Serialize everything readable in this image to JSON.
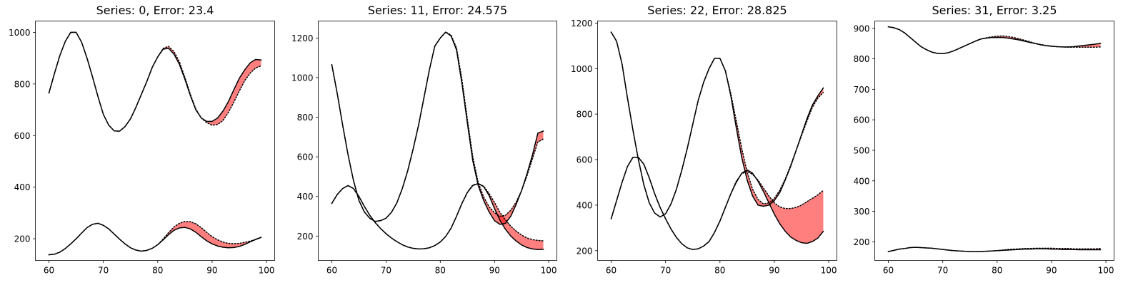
{
  "chart_data": [
    {
      "type": "line",
      "title": "Series: 0, Error: 23.4",
      "xlim": [
        57.5,
        101.5
      ],
      "ylim": [
        116,
        1044
      ],
      "xticks": [
        60,
        70,
        80,
        90,
        100
      ],
      "yticks": [
        200,
        400,
        600,
        800,
        1000
      ],
      "x": [
        60,
        61,
        62,
        63,
        64,
        65,
        66,
        67,
        68,
        69,
        70,
        71,
        72,
        73,
        74,
        75,
        76,
        77,
        78,
        79,
        80,
        81,
        82,
        83,
        84,
        85,
        86,
        87,
        88,
        89,
        90,
        91,
        92,
        93,
        94,
        95,
        96,
        97,
        98,
        99
      ],
      "series": [
        {
          "values": [
            765,
            840,
            910,
            965,
            1000,
            1000,
            962,
            900,
            828,
            752,
            682,
            640,
            618,
            617,
            635,
            665,
            710,
            760,
            810,
            865,
            905,
            935,
            938,
            915,
            875,
            818,
            755,
            700,
            668,
            655,
            655,
            668,
            695,
            732,
            778,
            822,
            855,
            882,
            895,
            893
          ]
        },
        {
          "values": [
            765,
            840,
            910,
            965,
            1000,
            1000,
            962,
            900,
            828,
            752,
            682,
            640,
            618,
            617,
            635,
            665,
            710,
            760,
            810,
            865,
            905,
            938,
            946,
            925,
            885,
            825,
            760,
            703,
            668,
            650,
            640,
            643,
            658,
            690,
            730,
            773,
            813,
            842,
            862,
            870
          ],
          "style": "dotted"
        },
        {
          "values": [
            138,
            140,
            148,
            162,
            180,
            200,
            222,
            243,
            256,
            260,
            252,
            238,
            218,
            198,
            180,
            165,
            156,
            152,
            155,
            163,
            177,
            196,
            216,
            233,
            242,
            244,
            238,
            225,
            208,
            192,
            180,
            172,
            167,
            165,
            166,
            170,
            178,
            188,
            197,
            205
          ]
        },
        {
          "values": [
            138,
            140,
            148,
            162,
            180,
            200,
            222,
            243,
            256,
            260,
            252,
            238,
            218,
            198,
            180,
            165,
            156,
            152,
            155,
            163,
            177,
            199,
            224,
            246,
            260,
            267,
            266,
            258,
            243,
            225,
            208,
            196,
            187,
            182,
            181,
            182,
            186,
            191,
            198,
            206
          ],
          "style": "dotted"
        }
      ]
    },
    {
      "type": "line",
      "title": "Series: 11, Error: 24.575",
      "xlim": [
        57.5,
        101.5
      ],
      "ylim": [
        77,
        1286
      ],
      "xticks": [
        60,
        70,
        80,
        90,
        100
      ],
      "yticks": [
        200,
        400,
        600,
        800,
        1000,
        1200
      ],
      "x": [
        60,
        61,
        62,
        63,
        64,
        65,
        66,
        67,
        68,
        69,
        70,
        71,
        72,
        73,
        74,
        75,
        76,
        77,
        78,
        79,
        80,
        81,
        82,
        83,
        84,
        85,
        86,
        87,
        88,
        89,
        90,
        91,
        92,
        93,
        94,
        95,
        96,
        97,
        98,
        99
      ],
      "series": [
        {
          "values": [
            1065,
            920,
            760,
            610,
            480,
            380,
            322,
            290,
            274,
            278,
            290,
            320,
            368,
            440,
            530,
            640,
            760,
            900,
            1040,
            1160,
            1200,
            1230,
            1210,
            1140,
            970,
            770,
            580,
            455,
            380,
            322,
            278,
            259,
            264,
            300,
            360,
            430,
            515,
            610,
            720,
            730
          ]
        },
        {
          "values": [
            1065,
            920,
            760,
            610,
            480,
            380,
            322,
            290,
            274,
            278,
            290,
            320,
            368,
            440,
            530,
            640,
            760,
            900,
            1040,
            1160,
            1200,
            1230,
            1215,
            1150,
            990,
            790,
            600,
            470,
            398,
            348,
            318,
            300,
            305,
            330,
            372,
            430,
            505,
            590,
            675,
            690
          ],
          "style": "dotted"
        },
        {
          "values": [
            365,
            410,
            440,
            455,
            440,
            400,
            350,
            305,
            268,
            238,
            212,
            190,
            172,
            156,
            145,
            138,
            135,
            136,
            141,
            152,
            170,
            198,
            240,
            300,
            365,
            420,
            455,
            465,
            450,
            405,
            340,
            280,
            235,
            200,
            175,
            155,
            142,
            135,
            132,
            133
          ]
        },
        {
          "values": [
            365,
            410,
            440,
            455,
            440,
            400,
            350,
            305,
            268,
            238,
            212,
            190,
            172,
            156,
            145,
            138,
            135,
            136,
            141,
            152,
            170,
            198,
            240,
            300,
            365,
            422,
            458,
            465,
            452,
            415,
            370,
            320,
            282,
            250,
            225,
            205,
            190,
            182,
            178,
            176
          ],
          "style": "dotted"
        }
      ]
    },
    {
      "type": "line",
      "title": "Series: 22, Error: 28.825",
      "xlim": [
        57.5,
        101.5
      ],
      "ylim": [
        157,
        1209
      ],
      "xticks": [
        60,
        70,
        80,
        90,
        100
      ],
      "yticks": [
        200,
        400,
        600,
        800,
        1000,
        1200
      ],
      "x": [
        60,
        61,
        62,
        63,
        64,
        65,
        66,
        67,
        68,
        69,
        70,
        71,
        72,
        73,
        74,
        75,
        76,
        77,
        78,
        79,
        80,
        81,
        82,
        83,
        84,
        85,
        86,
        87,
        88,
        89,
        90,
        91,
        92,
        93,
        94,
        95,
        96,
        97,
        98,
        99
      ],
      "series": [
        {
          "values": [
            1160,
            1120,
            1020,
            870,
            730,
            600,
            490,
            410,
            365,
            348,
            362,
            405,
            470,
            555,
            650,
            755,
            860,
            940,
            1000,
            1045,
            1045,
            990,
            880,
            740,
            610,
            510,
            440,
            400,
            395,
            400,
            420,
            455,
            510,
            570,
            640,
            710,
            780,
            840,
            880,
            915
          ]
        },
        {
          "values": [
            1160,
            1120,
            1020,
            870,
            730,
            600,
            490,
            410,
            365,
            348,
            362,
            405,
            470,
            555,
            650,
            755,
            860,
            940,
            1000,
            1045,
            1045,
            990,
            890,
            770,
            650,
            545,
            470,
            425,
            405,
            410,
            430,
            465,
            515,
            575,
            640,
            705,
            770,
            830,
            870,
            895
          ],
          "style": "dotted"
        },
        {
          "values": [
            340,
            420,
            500,
            570,
            610,
            610,
            580,
            520,
            450,
            390,
            340,
            295,
            258,
            230,
            212,
            205,
            208,
            220,
            240,
            280,
            330,
            390,
            450,
            500,
            540,
            555,
            540,
            505,
            460,
            410,
            360,
            318,
            285,
            260,
            245,
            235,
            232,
            240,
            255,
            285
          ]
        },
        {
          "values": [
            340,
            420,
            500,
            570,
            610,
            610,
            580,
            520,
            450,
            390,
            340,
            295,
            258,
            230,
            212,
            205,
            208,
            220,
            240,
            280,
            330,
            390,
            450,
            505,
            538,
            548,
            535,
            510,
            475,
            440,
            410,
            392,
            385,
            385,
            390,
            400,
            415,
            430,
            445,
            465
          ],
          "style": "dotted"
        }
      ]
    },
    {
      "type": "line",
      "title": "Series: 31, Error: 3.25",
      "xlim": [
        57.5,
        101.5
      ],
      "ylim": [
        139,
        924
      ],
      "xticks": [
        60,
        70,
        80,
        90,
        100
      ],
      "yticks": [
        200,
        300,
        400,
        500,
        600,
        700,
        800,
        900
      ],
      "x": [
        60,
        61,
        62,
        63,
        64,
        65,
        66,
        67,
        68,
        69,
        70,
        71,
        72,
        73,
        74,
        75,
        76,
        77,
        78,
        79,
        80,
        81,
        82,
        83,
        84,
        85,
        86,
        87,
        88,
        89,
        90,
        91,
        92,
        93,
        94,
        95,
        96,
        97,
        98,
        99
      ],
      "series": [
        {
          "values": [
            905,
            902,
            896,
            885,
            870,
            855,
            840,
            830,
            822,
            818,
            817,
            820,
            826,
            834,
            842,
            850,
            858,
            865,
            868,
            870,
            870,
            870,
            868,
            865,
            862,
            858,
            854,
            850,
            846,
            843,
            841,
            840,
            839,
            839,
            840,
            842,
            844,
            846,
            848,
            851
          ]
        },
        {
          "values": [
            905,
            902,
            896,
            885,
            870,
            855,
            840,
            830,
            822,
            818,
            817,
            820,
            826,
            834,
            842,
            850,
            858,
            865,
            869,
            872,
            874,
            875,
            873,
            870,
            866,
            861,
            856,
            851,
            847,
            844,
            842,
            840,
            839,
            838,
            838,
            838,
            838,
            838,
            838,
            839
          ],
          "style": "dotted"
        },
        {
          "values": [
            168,
            172,
            176,
            178,
            181,
            182,
            181,
            180,
            179,
            177,
            175,
            173,
            171,
            170,
            169,
            168,
            168,
            168,
            169,
            170,
            171,
            172,
            173,
            174,
            175,
            176,
            176,
            177,
            177,
            177,
            176,
            176,
            175,
            175,
            175,
            174,
            174,
            174,
            174,
            174
          ]
        },
        {
          "values": [
            168,
            172,
            176,
            178,
            181,
            182,
            181,
            180,
            179,
            177,
            175,
            173,
            171,
            170,
            169,
            168,
            168,
            168,
            169,
            170,
            171,
            173,
            175,
            176,
            177,
            178,
            178,
            179,
            179,
            179,
            179,
            178,
            178,
            178,
            177,
            177,
            177,
            177,
            177,
            178
          ],
          "style": "dotted"
        }
      ]
    }
  ]
}
